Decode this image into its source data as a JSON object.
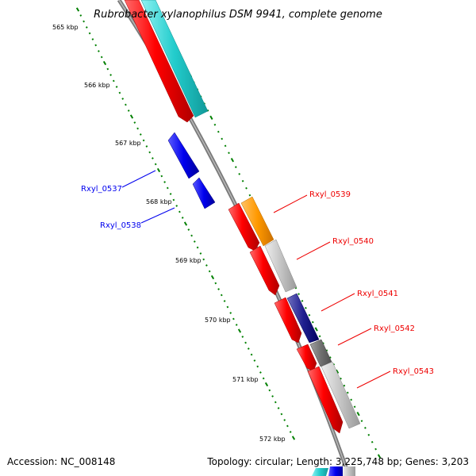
{
  "title": "Rubrobacter xylanophilus DSM 9941, complete genome",
  "footer": {
    "accession": "Accession: NC_008148",
    "summary": "Topology: circular; Length: 3,225,748 bp; Genes: 3,203"
  },
  "ruler": {
    "ticks": [
      {
        "label": "565 kbp"
      },
      {
        "label": "566 kbp"
      },
      {
        "label": "567 kbp"
      },
      {
        "label": "568 kbp"
      },
      {
        "label": "569 kbp"
      },
      {
        "label": "570 kbp"
      },
      {
        "label": "571 kbp"
      },
      {
        "label": "572 kbp"
      }
    ]
  },
  "genes": [
    {
      "label": "Rxyl_0537",
      "strand": "minus",
      "color": "#0000ee"
    },
    {
      "label": "Rxyl_0538",
      "strand": "minus",
      "color": "#0000ee"
    },
    {
      "label": "Rxyl_0539",
      "strand": "plus",
      "color": "#ee0000"
    },
    {
      "label": "Rxyl_0540",
      "strand": "plus",
      "color": "#ee0000"
    },
    {
      "label": "Rxyl_0541",
      "strand": "plus",
      "color": "#ee0000"
    },
    {
      "label": "Rxyl_0542",
      "strand": "plus",
      "color": "#ee0000"
    },
    {
      "label": "Rxyl_0543",
      "strand": "plus",
      "color": "#ee0000"
    }
  ],
  "colors": {
    "backbone": "#808080",
    "tick_green": "#008000",
    "cds_plus": "#ee0000",
    "cds_minus": "#0000ee",
    "orange_feature": "#ff9900",
    "cyan_feature": "#22cccc",
    "navy_feature": "#000080",
    "grey_feature": "#c0c0c0",
    "dark_grey_feature": "#707070"
  }
}
